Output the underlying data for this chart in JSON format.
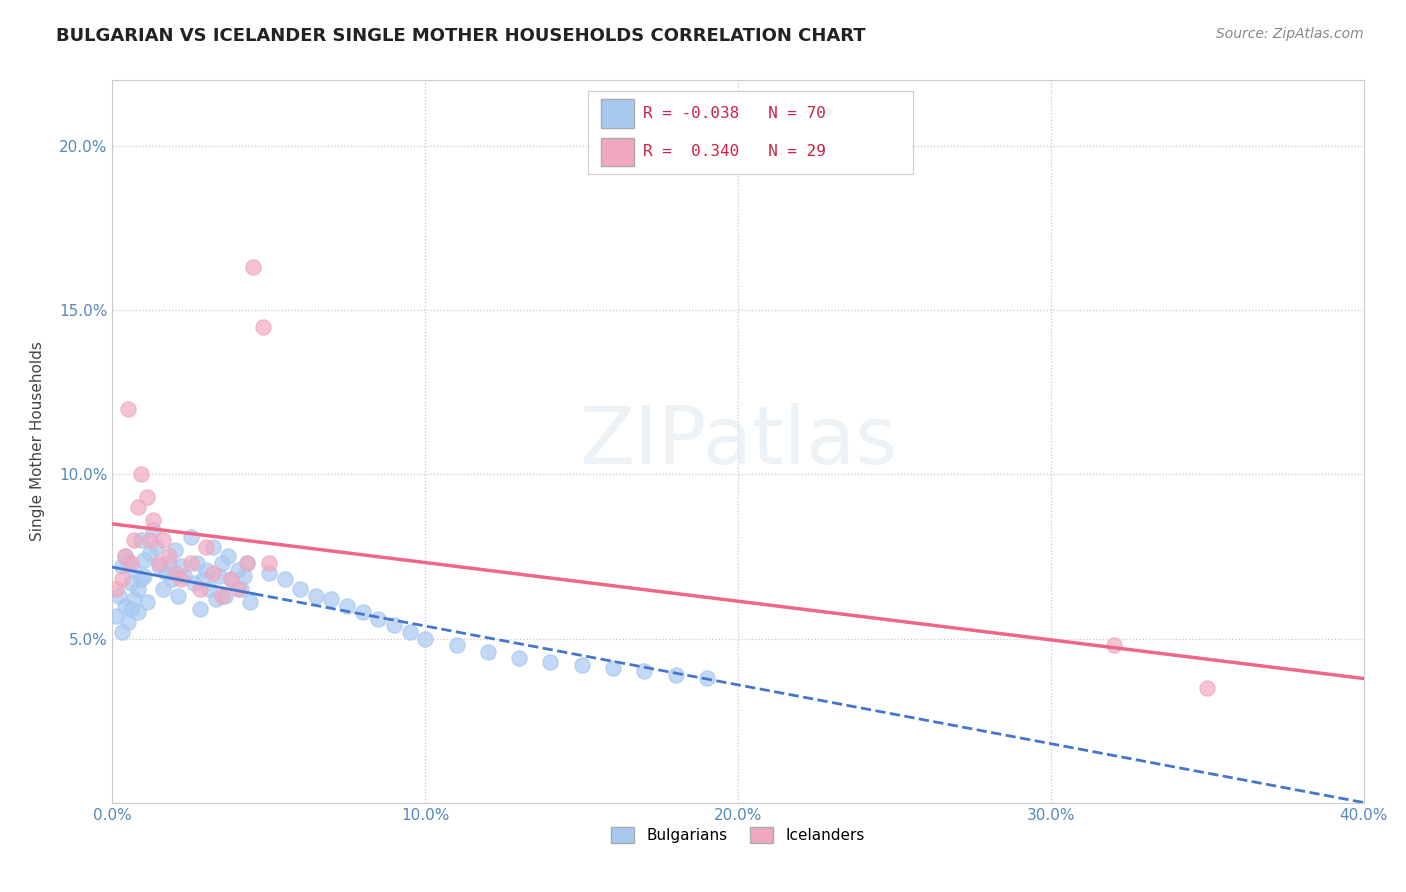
{
  "title": "BULGARIAN VS ICELANDER SINGLE MOTHER HOUSEHOLDS CORRELATION CHART",
  "source": "Source: ZipAtlas.com",
  "ylabel": "Single Mother Households",
  "watermark": "ZIPatlas",
  "xlim": [
    0.0,
    0.4
  ],
  "ylim": [
    0.0,
    0.22
  ],
  "xticks": [
    0.0,
    0.1,
    0.2,
    0.3,
    0.4
  ],
  "xticklabels": [
    "0.0%",
    "10.0%",
    "20.0%",
    "30.0%",
    "40.0%"
  ],
  "yticks": [
    0.05,
    0.1,
    0.15,
    0.2
  ],
  "yticklabels": [
    "5.0%",
    "10.0%",
    "15.0%",
    "20.0%"
  ],
  "bulgarian_color": "#a8c8f0",
  "icelander_color": "#f0a8c0",
  "bulgarian_line_color": "#4477cc",
  "icelander_line_color": "#ee6688",
  "bg_color": "#ffffff",
  "bulgarian_R": -0.038,
  "bulgarian_N": 70,
  "icelander_R": 0.34,
  "icelander_N": 29,
  "bulgarian_x": [
    0.001,
    0.002,
    0.003,
    0.003,
    0.004,
    0.004,
    0.005,
    0.005,
    0.006,
    0.006,
    0.007,
    0.007,
    0.008,
    0.008,
    0.009,
    0.009,
    0.01,
    0.01,
    0.011,
    0.012,
    0.013,
    0.014,
    0.015,
    0.016,
    0.017,
    0.018,
    0.019,
    0.02,
    0.021,
    0.022,
    0.023,
    0.025,
    0.026,
    0.027,
    0.028,
    0.029,
    0.03,
    0.031,
    0.032,
    0.033,
    0.034,
    0.035,
    0.036,
    0.037,
    0.038,
    0.04,
    0.041,
    0.042,
    0.043,
    0.044,
    0.05,
    0.055,
    0.06,
    0.065,
    0.07,
    0.075,
    0.08,
    0.085,
    0.09,
    0.095,
    0.1,
    0.11,
    0.12,
    0.13,
    0.14,
    0.15,
    0.16,
    0.17,
    0.18,
    0.19
  ],
  "bulgarian_y": [
    0.057,
    0.063,
    0.052,
    0.072,
    0.06,
    0.075,
    0.073,
    0.055,
    0.059,
    0.067,
    0.062,
    0.071,
    0.058,
    0.065,
    0.068,
    0.08,
    0.074,
    0.069,
    0.061,
    0.076,
    0.083,
    0.078,
    0.072,
    0.065,
    0.07,
    0.073,
    0.068,
    0.077,
    0.063,
    0.072,
    0.069,
    0.081,
    0.067,
    0.073,
    0.059,
    0.068,
    0.071,
    0.065,
    0.078,
    0.062,
    0.069,
    0.073,
    0.063,
    0.075,
    0.068,
    0.071,
    0.065,
    0.069,
    0.073,
    0.061,
    0.07,
    0.068,
    0.065,
    0.063,
    0.062,
    0.06,
    0.058,
    0.056,
    0.054,
    0.052,
    0.05,
    0.048,
    0.046,
    0.044,
    0.043,
    0.042,
    0.041,
    0.04,
    0.039,
    0.038
  ],
  "icelander_x": [
    0.001,
    0.003,
    0.004,
    0.005,
    0.006,
    0.007,
    0.008,
    0.009,
    0.011,
    0.012,
    0.013,
    0.015,
    0.016,
    0.018,
    0.02,
    0.022,
    0.025,
    0.028,
    0.03,
    0.032,
    0.035,
    0.038,
    0.04,
    0.043,
    0.045,
    0.048,
    0.05,
    0.32,
    0.35
  ],
  "icelander_y": [
    0.065,
    0.068,
    0.075,
    0.12,
    0.073,
    0.08,
    0.09,
    0.1,
    0.093,
    0.08,
    0.086,
    0.073,
    0.08,
    0.075,
    0.07,
    0.068,
    0.073,
    0.065,
    0.078,
    0.07,
    0.063,
    0.068,
    0.065,
    0.073,
    0.163,
    0.145,
    0.073,
    0.048,
    0.035
  ],
  "title_fontsize": 13,
  "axis_fontsize": 11,
  "tick_fontsize": 11,
  "source_fontsize": 10
}
